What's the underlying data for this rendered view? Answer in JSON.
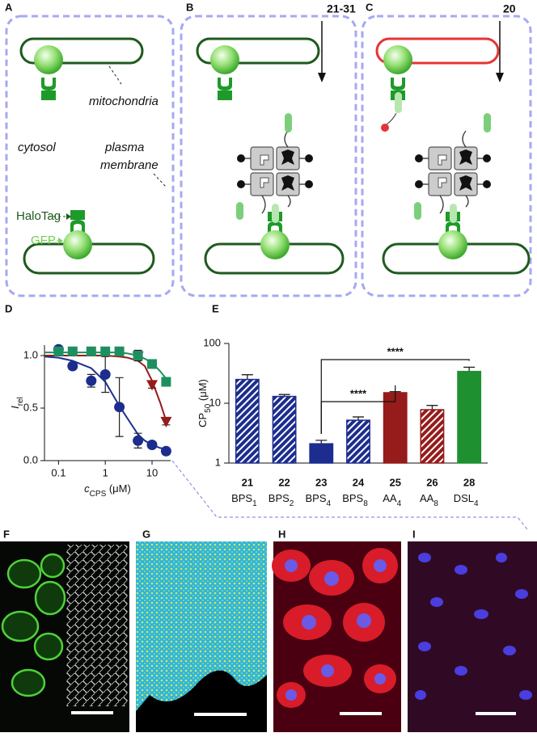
{
  "panel_labels": [
    "A",
    "B",
    "C",
    "D",
    "E",
    "F",
    "G",
    "H",
    "I"
  ],
  "diagram": {
    "compound_groups": [
      "21-31",
      "20"
    ],
    "labels": {
      "mitochondria": "mitochondria",
      "cytosol": "cytosol",
      "plasma": "plasma",
      "membrane": "membrane",
      "halotag": "HaloTag",
      "gfp": "GFP"
    }
  },
  "chart_data": [
    {
      "type": "scatter",
      "xscale": "log",
      "xlim": [
        0.05,
        25
      ],
      "xticks": [
        0.1,
        1,
        10
      ],
      "ylim": [
        0,
        1.1
      ],
      "yticks": [
        {
          "value": 0,
          "label": "0.0"
        },
        {
          "value": 0.5,
          "label": "0.5"
        },
        {
          "value": 1,
          "label": "1.0"
        }
      ],
      "ylabel": {
        "main": "I",
        "sub": "rel"
      },
      "xlabel": {
        "main": "c",
        "sub": "CPS",
        "unit": " (μM)"
      },
      "series": [
        {
          "color": "#1c2d8f",
          "marker": "circle",
          "x": [
            0.1,
            0.2,
            0.5,
            1,
            2,
            5,
            10,
            20
          ],
          "values": [
            1.06,
            0.9,
            0.76,
            0.82,
            0.51,
            0.19,
            0.15,
            0.09
          ],
          "errors": [
            0.03,
            0.03,
            0.06,
            0.17,
            0.28,
            0.07,
            0.03,
            0.03
          ],
          "fit_x": [
            0.05,
            0.1,
            0.2,
            0.5,
            1,
            2,
            3,
            5,
            7,
            10,
            15,
            20
          ],
          "fit_values": [
            0.99,
            0.98,
            0.95,
            0.88,
            0.75,
            0.52,
            0.4,
            0.25,
            0.19,
            0.15,
            0.12,
            0.11
          ]
        },
        {
          "color": "#961b1b",
          "marker": "triangle",
          "x": [
            5,
            10,
            20
          ],
          "values": [
            0.99,
            0.72,
            0.37
          ],
          "errors": [
            0.03,
            0.03,
            0.03
          ],
          "fit_x": [
            0.05,
            0.1,
            0.2,
            0.5,
            1,
            2,
            3,
            5,
            7,
            10,
            15,
            20
          ],
          "fit_values": [
            1,
            1,
            1,
            1,
            1,
            0.99,
            0.98,
            0.95,
            0.9,
            0.76,
            0.55,
            0.38
          ]
        },
        {
          "color": "#1e9060",
          "marker": "square",
          "x": [
            0.1,
            0.2,
            0.5,
            1,
            2,
            5,
            10,
            20
          ],
          "values": [
            1.04,
            1.04,
            1.04,
            1.04,
            1.04,
            1.0,
            0.92,
            0.75
          ],
          "errors": [
            0.04,
            0.03,
            0.03,
            0.03,
            0.03,
            0.05,
            0.04,
            0.04
          ],
          "fit_x": [
            0.05,
            0.1,
            0.2,
            0.5,
            1,
            2,
            3,
            5,
            7,
            10,
            15,
            20
          ],
          "fit_values": [
            1.03,
            1.03,
            1.03,
            1.03,
            1.03,
            1.03,
            1.02,
            1.0,
            0.97,
            0.93,
            0.85,
            0.78
          ]
        }
      ]
    },
    {
      "type": "bar",
      "yscale": "log",
      "ylim": [
        1,
        100
      ],
      "yticks": [
        1,
        10,
        100
      ],
      "ylabel": {
        "main": "CP",
        "sub": "50",
        "unit": " (μM)"
      },
      "categories": [
        "21",
        "22",
        "23",
        "24",
        "25",
        "26",
        "28"
      ],
      "category_names": [
        {
          "main": "BPS",
          "sub": "1"
        },
        {
          "main": "BPS",
          "sub": "2"
        },
        {
          "main": "BPS",
          "sub": "4"
        },
        {
          "main": "BPS",
          "sub": "8"
        },
        {
          "main": "AA",
          "sub": "4"
        },
        {
          "main": "AA",
          "sub": "8"
        },
        {
          "main": "DSL",
          "sub": "4"
        }
      ],
      "values": [
        25,
        13,
        2.1,
        5.2,
        15,
        7.8,
        34
      ],
      "errors": [
        5,
        1,
        0.3,
        0.7,
        0.6,
        1.4,
        6
      ],
      "colors": [
        "#1c2d8f",
        "#1c2d8f",
        "#1c2d8f",
        "#1c2d8f",
        "#961b1b",
        "#961b1b",
        "#1e9030"
      ],
      "hatched": [
        true,
        true,
        false,
        true,
        false,
        true,
        false
      ],
      "significance": [
        {
          "from": 2,
          "to": 4,
          "label": "****"
        },
        {
          "from": 2,
          "to": 6,
          "label": "****"
        }
      ]
    }
  ]
}
